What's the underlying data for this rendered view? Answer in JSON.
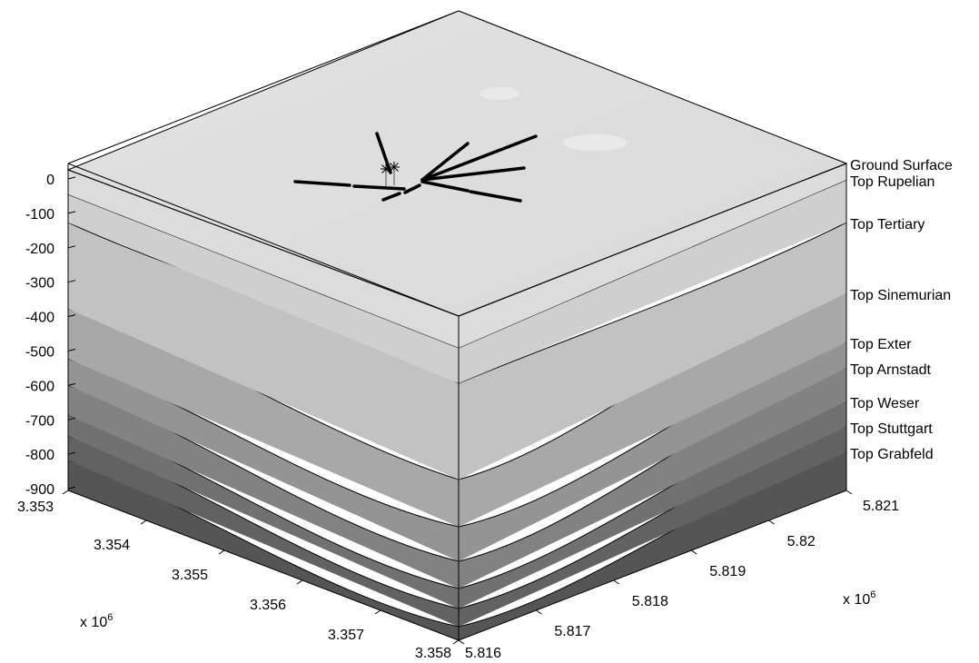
{
  "chart_data": {
    "type": "surface",
    "title": "",
    "z_axis": {
      "ticks": [
        "0",
        "-100",
        "-200",
        "-300",
        "-400",
        "-500",
        "-600",
        "-700",
        "-800",
        "-900"
      ],
      "range": [
        -900,
        50
      ]
    },
    "x_axis": {
      "ticks": [
        "3.353",
        "3.354",
        "3.355",
        "3.356",
        "3.357",
        "3.358"
      ],
      "range": [
        3.353,
        3.358
      ],
      "exponent_label": "x 10",
      "exponent": "6"
    },
    "y_axis": {
      "ticks": [
        "5.816",
        "5.817",
        "5.818",
        "5.819",
        "5.82",
        "5.821"
      ],
      "range": [
        5.816,
        5.821
      ],
      "exponent_label": "x 10",
      "exponent": "6"
    },
    "layers": [
      {
        "name": "Ground Surface",
        "approx_depth_m": 20
      },
      {
        "name": "Top Rupelian",
        "approx_depth_m": -30
      },
      {
        "name": "Top Tertiary",
        "approx_depth_m": -120
      },
      {
        "name": "Top Sinemurian",
        "approx_depth_m": -350
      },
      {
        "name": "Top Exter",
        "approx_depth_m": -480
      },
      {
        "name": "Top Arnstadt",
        "approx_depth_m": -570
      },
      {
        "name": "Top Weser",
        "approx_depth_m": -680
      },
      {
        "name": "Top Stuttgart",
        "approx_depth_m": -750
      },
      {
        "name": "Top Grabfeld",
        "approx_depth_m": -820
      }
    ],
    "colormap": "gray",
    "grid": false,
    "box": true,
    "markers": "well paths shown as black lines with asterisk well heads on ground surface"
  }
}
